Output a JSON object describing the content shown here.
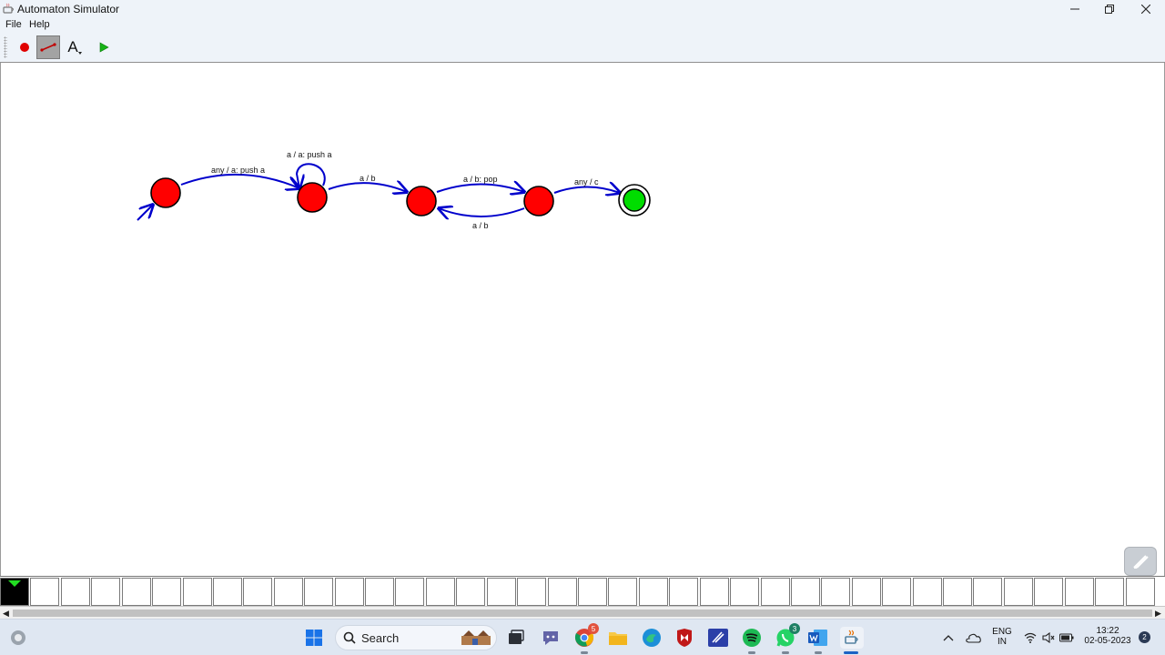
{
  "window": {
    "title": "Automaton Simulator"
  },
  "menu": {
    "file": "File",
    "help": "Help"
  },
  "toolbar": {
    "tools": [
      {
        "name": "add-state-tool",
        "icon": "red-circle-icon"
      },
      {
        "name": "add-transition-tool",
        "icon": "transition-line-icon",
        "selected": true
      },
      {
        "name": "add-text-tool",
        "icon": "text-A-icon",
        "label": "A"
      },
      {
        "name": "run-tool",
        "icon": "play-icon"
      }
    ]
  },
  "automaton": {
    "states": [
      {
        "id": "s0",
        "initial": true,
        "accepting": false,
        "color": "#ff0000"
      },
      {
        "id": "s1",
        "initial": false,
        "accepting": false,
        "color": "#ff0000"
      },
      {
        "id": "s2",
        "initial": false,
        "accepting": false,
        "color": "#ff0000"
      },
      {
        "id": "s3",
        "initial": false,
        "accepting": false,
        "color": "#ff0000"
      },
      {
        "id": "s4",
        "initial": false,
        "accepting": true,
        "color": "#00dd00"
      }
    ],
    "transitions": [
      {
        "from": "s0",
        "to": "s1",
        "label": "any / a: push a"
      },
      {
        "from": "s1",
        "to": "s1",
        "label": "a / a: push a"
      },
      {
        "from": "s1",
        "to": "s2",
        "label": "a / b"
      },
      {
        "from": "s2",
        "to": "s3",
        "label": "a / b: pop"
      },
      {
        "from": "s3",
        "to": "s2",
        "label": "a / b"
      },
      {
        "from": "s3",
        "to": "s4",
        "label": "any / c"
      }
    ],
    "edge_color": "#0000cc"
  },
  "tape": {
    "cell_count": 38,
    "head_position": 0,
    "cells": [
      "",
      "",
      "",
      "",
      "",
      "",
      "",
      "",
      "",
      "",
      "",
      "",
      "",
      "",
      "",
      "",
      "",
      "",
      "",
      "",
      "",
      "",
      "",
      "",
      "",
      "",
      "",
      "",
      "",
      "",
      "",
      "",
      "",
      "",
      "",
      "",
      "",
      ""
    ]
  },
  "taskbar": {
    "search_label": "Search",
    "apps": [
      {
        "name": "chrome",
        "badge": "5"
      },
      {
        "name": "whatsapp",
        "badge": "3"
      }
    ],
    "language_line1": "ENG",
    "language_line2": "IN",
    "time": "13:22",
    "date": "02-05-2023",
    "notification_count": "2"
  }
}
